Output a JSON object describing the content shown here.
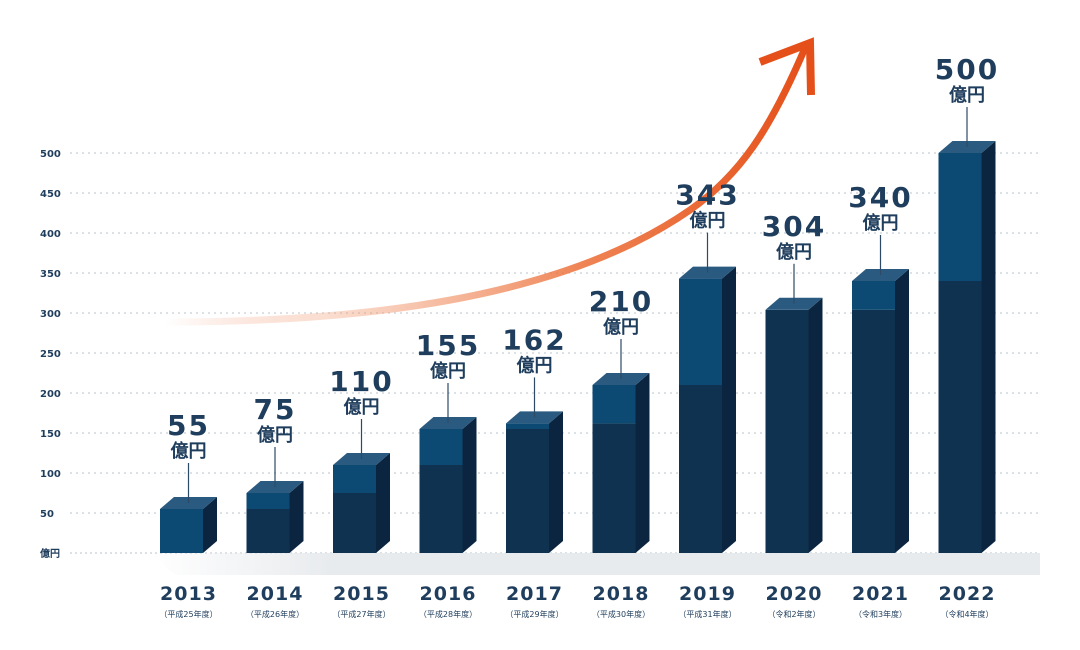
{
  "chart_data": {
    "type": "bar",
    "title": "",
    "xlabel": "",
    "ylabel": "",
    "y_unit": "億円",
    "ylim": [
      0,
      500
    ],
    "yticks": [
      50,
      100,
      150,
      200,
      250,
      300,
      350,
      400,
      450,
      500
    ],
    "y_zero_label": "億円",
    "grid": true,
    "categories": [
      "2013",
      "2014",
      "2015",
      "2016",
      "2017",
      "2018",
      "2019",
      "2020",
      "2021",
      "2022"
    ],
    "era_labels": [
      "（平成25年度）",
      "（平成26年度）",
      "（平成27年度）",
      "（平成28年度）",
      "（平成29年度）",
      "（平成30年度）",
      "（平成31年度）",
      "（令和2年度）",
      "（令和3年度）",
      "（令和4年度）"
    ],
    "values": [
      55,
      75,
      110,
      155,
      162,
      210,
      343,
      304,
      340,
      500
    ],
    "value_labels": [
      "55",
      "75",
      "110",
      "155",
      "162",
      "210",
      "343",
      "304",
      "340",
      "500"
    ],
    "value_unit_label": "億円",
    "colors": {
      "front_dark": "#0f3251",
      "front_light": "#0c4a73",
      "side": "#0b2540",
      "top": "#2b5a80",
      "text": "#1f3d5c",
      "arrow": "#e8541c"
    }
  }
}
